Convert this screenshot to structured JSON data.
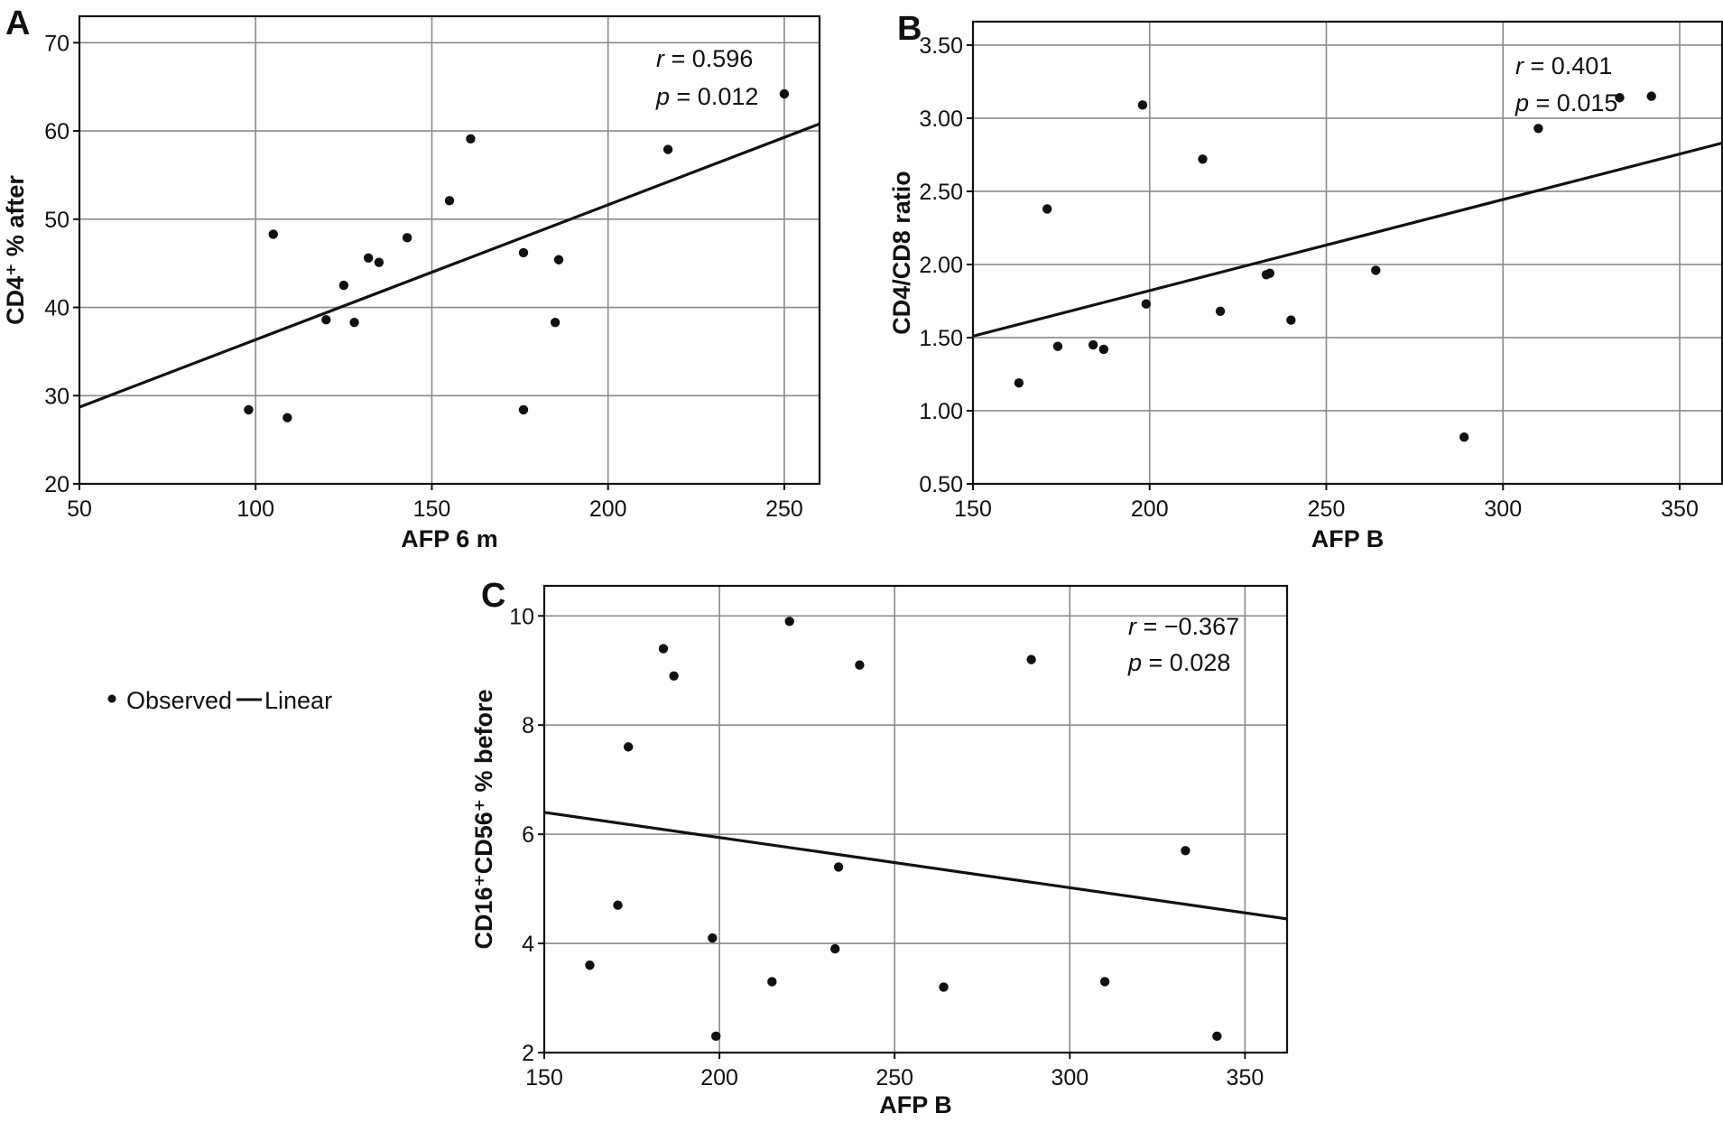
{
  "legend": {
    "items": [
      {
        "label": "Observed",
        "marker": "dot"
      },
      {
        "label": "Linear",
        "marker": "line"
      }
    ]
  },
  "chart_data": [
    {
      "id": "A",
      "type": "scatter",
      "panel_label": "A",
      "xlabel": "AFP 6 m",
      "ylabel": "CD4⁺ % after",
      "xlim": [
        50,
        260
      ],
      "ylim": [
        20,
        73
      ],
      "xticks": [
        50,
        100,
        150,
        200,
        250
      ],
      "yticks": [
        20,
        30,
        40,
        50,
        60,
        70
      ],
      "grid": true,
      "r_label": "r",
      "r_value": "= 0.596",
      "p_label": "p",
      "p_value": "= 0.012",
      "points": [
        {
          "x": 98,
          "y": 28.4
        },
        {
          "x": 105,
          "y": 48.3
        },
        {
          "x": 109,
          "y": 27.5
        },
        {
          "x": 120,
          "y": 38.6
        },
        {
          "x": 125,
          "y": 42.5
        },
        {
          "x": 128,
          "y": 38.3
        },
        {
          "x": 132,
          "y": 45.6
        },
        {
          "x": 135,
          "y": 45.1
        },
        {
          "x": 143,
          "y": 47.9
        },
        {
          "x": 155,
          "y": 52.1
        },
        {
          "x": 161,
          "y": 59.1
        },
        {
          "x": 176,
          "y": 46.2
        },
        {
          "x": 176,
          "y": 28.4
        },
        {
          "x": 185,
          "y": 38.3
        },
        {
          "x": 186,
          "y": 45.4
        },
        {
          "x": 217,
          "y": 57.9
        },
        {
          "x": 250,
          "y": 64.2
        }
      ],
      "fit": {
        "x": [
          50,
          260
        ],
        "y": [
          28.7,
          60.8
        ]
      }
    },
    {
      "id": "B",
      "type": "scatter",
      "panel_label": "B",
      "xlabel": "AFP B",
      "ylabel": "CD4/CD8 ratio",
      "xlim": [
        150,
        362
      ],
      "ylim": [
        0.5,
        3.66
      ],
      "xticks": [
        150,
        200,
        250,
        300,
        350
      ],
      "yticks": [
        0.5,
        1.0,
        1.5,
        2.0,
        2.5,
        3.0,
        3.5
      ],
      "ytick_labels": [
        "0.50",
        "1.00",
        "1.50",
        "2.00",
        "2.50",
        "3.00",
        "3.50"
      ],
      "grid": true,
      "r_label": "r",
      "r_value": "= 0.401",
      "p_label": "p",
      "p_value": "= 0.015",
      "points": [
        {
          "x": 163,
          "y": 1.19
        },
        {
          "x": 171,
          "y": 2.38
        },
        {
          "x": 174,
          "y": 1.44
        },
        {
          "x": 184,
          "y": 1.45
        },
        {
          "x": 187,
          "y": 1.42
        },
        {
          "x": 198,
          "y": 3.09
        },
        {
          "x": 199,
          "y": 1.73
        },
        {
          "x": 215,
          "y": 2.72
        },
        {
          "x": 220,
          "y": 1.68
        },
        {
          "x": 233,
          "y": 1.93
        },
        {
          "x": 234,
          "y": 1.94
        },
        {
          "x": 240,
          "y": 1.62
        },
        {
          "x": 264,
          "y": 1.96
        },
        {
          "x": 289,
          "y": 0.82
        },
        {
          "x": 310,
          "y": 2.93
        },
        {
          "x": 333,
          "y": 3.14
        },
        {
          "x": 342,
          "y": 3.15
        }
      ],
      "fit": {
        "x": [
          150,
          362
        ],
        "y": [
          1.51,
          2.83
        ]
      }
    },
    {
      "id": "C",
      "type": "scatter",
      "panel_label": "C",
      "xlabel": "AFP B",
      "ylabel": "CD16⁺CD56⁺ % before",
      "xlim": [
        150,
        362
      ],
      "ylim": [
        2,
        10.55
      ],
      "xticks": [
        150,
        200,
        250,
        300,
        350
      ],
      "yticks": [
        2,
        4,
        6,
        8,
        10
      ],
      "grid": true,
      "r_label": "r",
      "r_value": "= −0.367",
      "p_label": "p",
      "p_value": "= 0.028",
      "points": [
        {
          "x": 163,
          "y": 3.6
        },
        {
          "x": 171,
          "y": 4.7
        },
        {
          "x": 174,
          "y": 7.6
        },
        {
          "x": 184,
          "y": 9.4
        },
        {
          "x": 187,
          "y": 8.9
        },
        {
          "x": 198,
          "y": 4.1
        },
        {
          "x": 199,
          "y": 2.3
        },
        {
          "x": 215,
          "y": 3.3
        },
        {
          "x": 220,
          "y": 9.9
        },
        {
          "x": 233,
          "y": 3.9
        },
        {
          "x": 234,
          "y": 5.4
        },
        {
          "x": 240,
          "y": 9.1
        },
        {
          "x": 264,
          "y": 3.2
        },
        {
          "x": 289,
          "y": 9.2
        },
        {
          "x": 310,
          "y": 3.3
        },
        {
          "x": 333,
          "y": 5.7
        },
        {
          "x": 342,
          "y": 2.3
        }
      ],
      "fit": {
        "x": [
          150,
          362
        ],
        "y": [
          6.4,
          4.45
        ]
      }
    }
  ]
}
